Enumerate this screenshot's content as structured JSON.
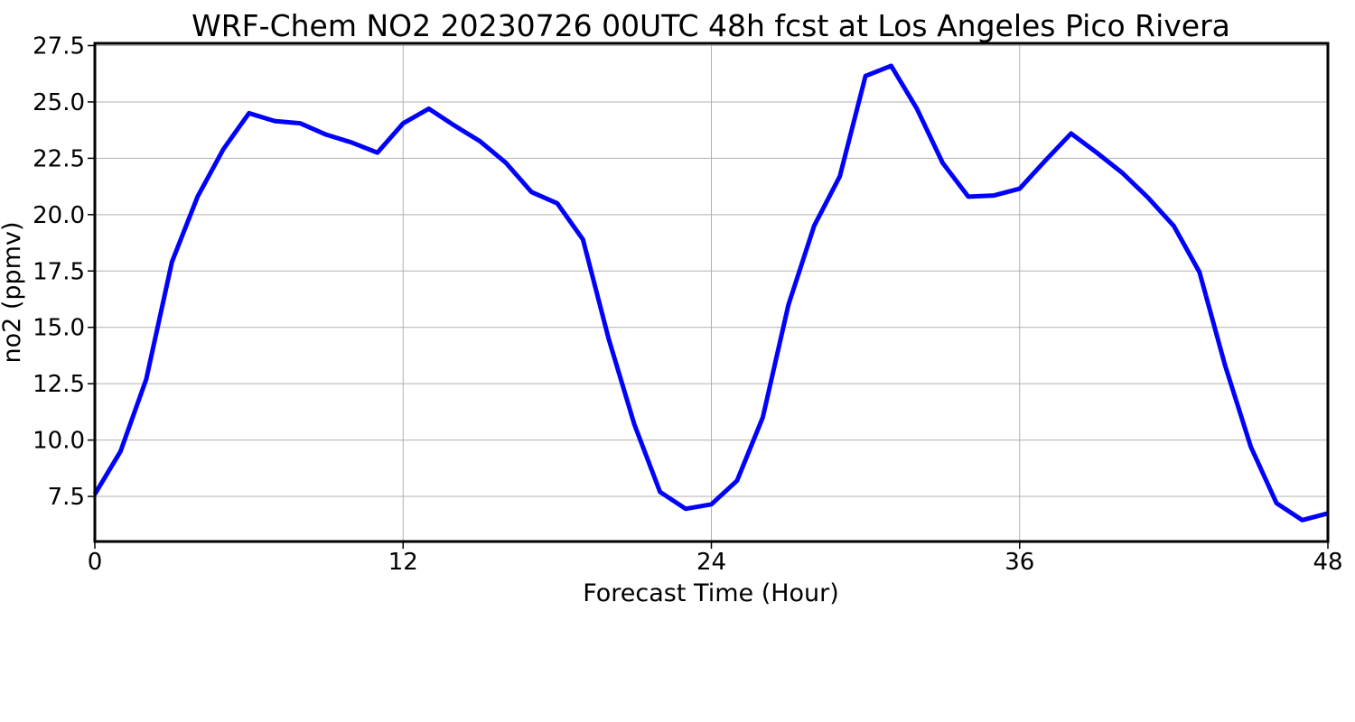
{
  "chart_data": {
    "type": "line",
    "title": "WRF-Chem NO2  20230726 00UTC 48h fcst at Los Angeles Pico Rivera",
    "xlabel": "Forecast Time (Hour)",
    "ylabel": "no2  (ppmv)",
    "xlim": [
      0,
      48
    ],
    "ylim": [
      5.5,
      27.6
    ],
    "xticks": [
      0,
      12,
      24,
      36,
      48
    ],
    "xtick_labels": [
      "0",
      "12",
      "24",
      "36",
      "48"
    ],
    "yticks": [
      7.5,
      10.0,
      12.5,
      15.0,
      17.5,
      20.0,
      22.5,
      25.0,
      27.5
    ],
    "ytick_labels": [
      "7.5",
      "10.0",
      "12.5",
      "15.0",
      "17.5",
      "20.0",
      "22.5",
      "25.0",
      "27.5"
    ],
    "grid": true,
    "series": [
      {
        "color": "#0000ff",
        "x": [
          0,
          1,
          2,
          3,
          4,
          5,
          6,
          7,
          8,
          9,
          10,
          11,
          12,
          13,
          14,
          15,
          16,
          17,
          18,
          19,
          20,
          21,
          22,
          23,
          24,
          25,
          26,
          27,
          28,
          29,
          30,
          31,
          32,
          33,
          34,
          35,
          36,
          37,
          38,
          39,
          40,
          41,
          42,
          43,
          44,
          45,
          46,
          47,
          48
        ],
        "y": [
          7.6,
          9.5,
          12.7,
          17.9,
          20.8,
          22.9,
          24.5,
          24.15,
          24.05,
          23.55,
          23.2,
          22.75,
          24.05,
          24.7,
          23.95,
          23.25,
          22.3,
          21.0,
          20.5,
          18.9,
          14.5,
          10.7,
          7.7,
          6.95,
          7.15,
          8.2,
          11.0,
          16.0,
          19.5,
          21.7,
          26.15,
          26.6,
          24.7,
          22.3,
          20.8,
          20.85,
          21.15,
          22.4,
          23.6,
          22.75,
          21.85,
          20.75,
          19.5,
          17.45,
          13.3,
          9.7,
          7.2,
          6.45,
          6.75
        ]
      }
    ]
  }
}
